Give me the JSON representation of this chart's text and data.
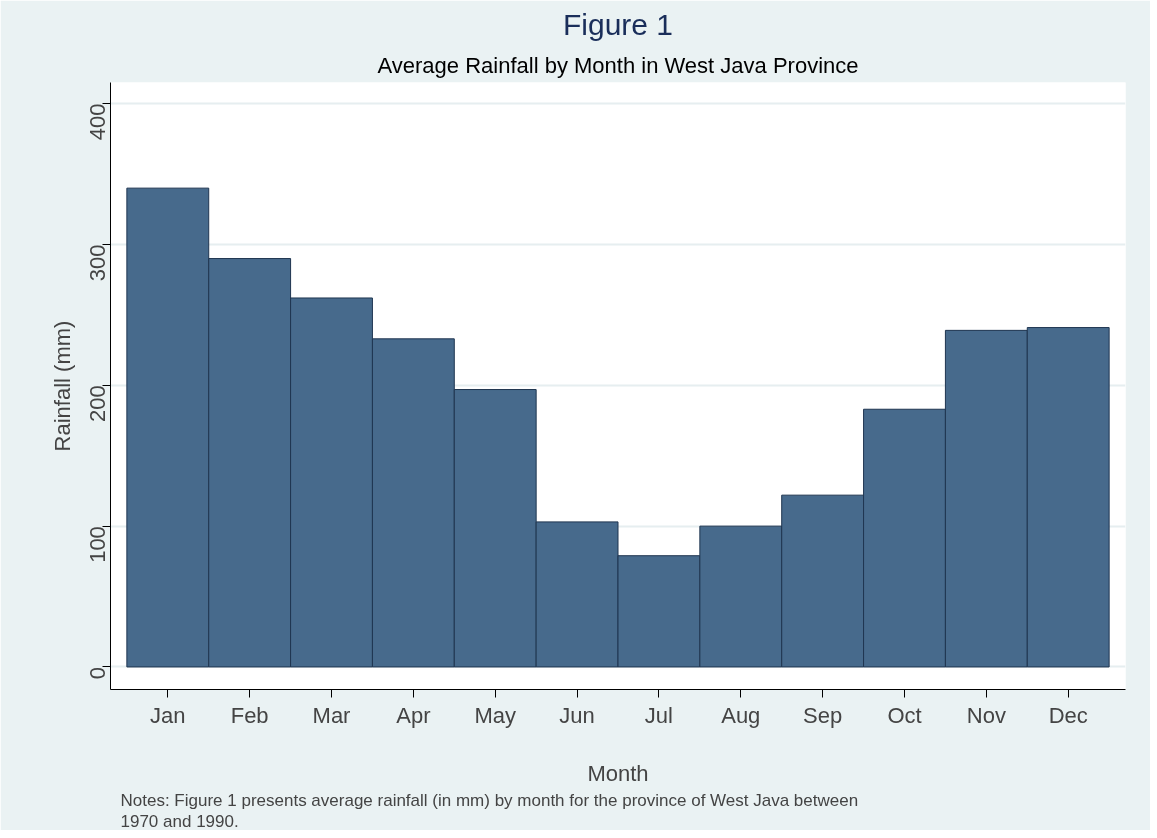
{
  "chart_data": {
    "type": "bar",
    "title": "Figure 1",
    "subtitle": "Average Rainfall by Month in West Java Province",
    "xlabel": "Month",
    "ylabel": "Rainfall (mm)",
    "categories": [
      "Jan",
      "Feb",
      "Mar",
      "Apr",
      "May",
      "Jun",
      "Jul",
      "Aug",
      "Sep",
      "Oct",
      "Nov",
      "Dec"
    ],
    "values": [
      340,
      290,
      262,
      233,
      197,
      103,
      79,
      100,
      122,
      183,
      239,
      241
    ],
    "color": "#476a8c",
    "ylim": [
      -16,
      415
    ],
    "yticks": [
      0,
      100,
      200,
      300,
      400
    ],
    "grid": "y",
    "annotations": [
      "Notes: Figure 1 presents average rainfall (in mm) by month for the province of West Java between 1970 and 1990."
    ]
  }
}
